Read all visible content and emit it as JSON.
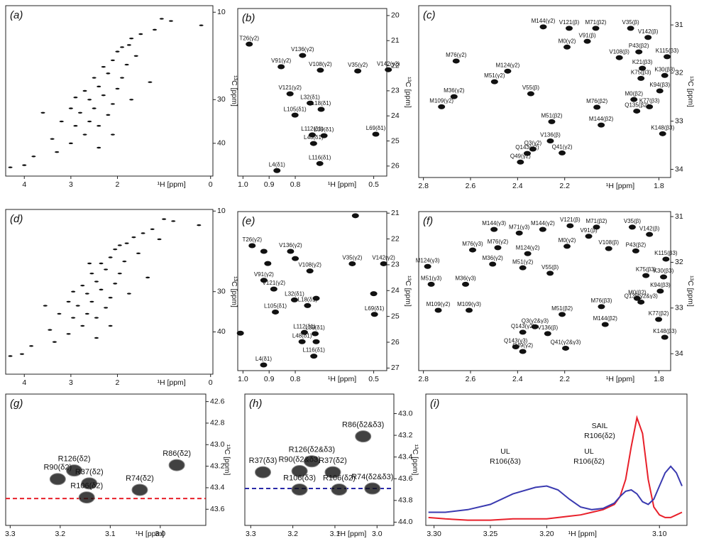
{
  "chart_data": [
    {
      "type": "scatter",
      "panel_label": "(a)",
      "xlabel": "¹H [ppm]",
      "ylabel": "¹³C [ppm]",
      "x_reversed": true,
      "y_reversed": true,
      "xlim": [
        -0.05,
        4.4
      ],
      "ylim": [
        8.5,
        47.5
      ],
      "xticks": [
        4,
        3,
        2,
        0
      ],
      "yticks": [
        10,
        30,
        40
      ],
      "peak_color": "#111111",
      "x": [
        1.05,
        1.2,
        1.5,
        1.7,
        1.75,
        1.9,
        2.0,
        1.6,
        2.1,
        1.8,
        2.3,
        2.2,
        1.9,
        2.5,
        2.4,
        2.0,
        2.7,
        2.3,
        2.6,
        2.9,
        1.7,
        2.1,
        2.5,
        2.8,
        3.0,
        2.2,
        2.6,
        2.4,
        2.9,
        3.2,
        2.1,
        2.7,
        3.0,
        3.4,
        3.3,
        2.4,
        3.8,
        4.3,
        4.0,
        0.85,
        0.2,
        3.6,
        1.3
      ],
      "y": [
        11.5,
        14,
        15,
        16,
        17.5,
        18,
        19,
        20,
        21,
        22,
        22.5,
        24,
        25,
        25,
        27,
        27.5,
        28,
        29,
        30,
        29.5,
        30,
        31,
        32,
        33,
        32,
        33.5,
        35,
        36,
        36,
        35,
        38,
        38,
        40,
        39,
        42,
        41,
        43,
        45.5,
        45,
        12,
        13,
        33,
        26
      ]
    },
    {
      "type": "scatter",
      "panel_label": "(b)",
      "xlabel": "¹H [ppm]",
      "ylabel": "¹³C [ppm]",
      "x_reversed": true,
      "y_reversed": true,
      "xlim": [
        0.45,
        1.02
      ],
      "ylim": [
        19.72,
        26.4
      ],
      "xticks": [
        {
          "value": 1,
          "label": "1.0"
        },
        0.9,
        0.8,
        0.5
      ],
      "yticks": [
        20,
        21,
        22,
        23,
        24,
        25,
        26
      ],
      "peak_color": "#111111",
      "label_color": "#e8202a",
      "x": [
        0.976,
        0.772,
        0.854,
        0.704,
        0.561,
        0.444,
        0.82,
        0.743,
        0.801,
        0.701,
        0.735,
        0.69,
        0.73,
        0.492,
        0.706,
        0.87
      ],
      "y": [
        21.14,
        21.59,
        22.04,
        22.18,
        22.21,
        22.16,
        23.12,
        23.49,
        23.97,
        23.74,
        24.76,
        24.79,
        25.1,
        24.73,
        25.9,
        26.18
      ],
      "labels": [
        "T26(γ2)",
        "V136(γ2)",
        "V91(γ2)",
        "V108(γ2)",
        "V35(γ2)",
        "V142(γ2)",
        "V121(γ2)",
        "L32(δ1)",
        "L105(δ1)",
        "L18(δ1)",
        "L112(δ1)",
        "L39(δ1)",
        "L48(δ1)",
        "L69(δ1)",
        "L116(δ1)",
        "L4(δ1)"
      ]
    },
    {
      "type": "scatter",
      "panel_label": "(c)",
      "xlabel": "¹H [ppm]",
      "ylabel": "¹³C [ppm]",
      "x_reversed": true,
      "y_reversed": true,
      "xlim": [
        1.75,
        2.82
      ],
      "ylim": [
        30.6,
        34.17
      ],
      "xticks": [
        2.8,
        2.6,
        2.4,
        2.2,
        1.8
      ],
      "yticks": [
        31,
        32,
        33,
        34
      ],
      "peak_color": "#111111",
      "label_color": "#e8202a",
      "x": [
        2.181,
        2.068,
        1.92,
        1.846,
        2.291,
        2.104,
        1.885,
        1.968,
        1.765,
        1.87,
        1.876,
        1.775,
        2.19,
        2.661,
        2.442,
        2.67,
        2.498,
        2.344,
        1.906,
        1.796,
        2.723,
        2.063,
        1.84,
        1.894,
        2.255,
        2.045,
        2.335,
        2.359,
        2.261,
        1.784,
        2.211,
        2.388
      ],
      "y": [
        31.07,
        31.07,
        31.07,
        31.26,
        31.04,
        31.34,
        31.56,
        31.68,
        31.66,
        31.9,
        32.11,
        32.05,
        31.46,
        31.75,
        31.96,
        32.49,
        32.18,
        32.43,
        32.55,
        32.37,
        32.7,
        32.71,
        32.7,
        32.79,
        33.01,
        33.08,
        33.58,
        33.67,
        33.41,
        33.26,
        33.66,
        33.85
      ],
      "labels": [
        "V121(β)",
        "M71(β2)",
        "V35(β)",
        "V142(β)",
        "M144(γ2)",
        "V91(β)",
        "P43(β2)",
        "V108(β)",
        "K115(β3)",
        "K21(β3)",
        "K75(β3)",
        "K30(β3)",
        "M0(γ2)",
        "M76(γ2)",
        "M124(γ2)",
        "M36(γ2)",
        "M51(γ2)",
        "V55(β)",
        "M0(β2)",
        "K94(β3)",
        "M109(γ2)",
        "M76(β2)",
        "K77(β3)",
        "Q135(β2)",
        "M51(β2)",
        "M144(β2)",
        "Q3(γ2)",
        "Q143(γ2)",
        "V136(β)",
        "K148(β3)",
        "Q41(γ2)",
        "Q49(γ2)"
      ]
    },
    {
      "type": "scatter",
      "panel_label": "(d)",
      "xlabel": "¹H [ppm]",
      "ylabel": "¹³C [ppm]",
      "x_reversed": true,
      "y_reversed": true,
      "xlim": [
        -0.05,
        4.4
      ],
      "ylim": [
        9.6,
        50.5
      ],
      "xticks": [
        4,
        3,
        2,
        0
      ],
      "yticks": [
        10,
        30,
        40
      ],
      "peak_color": "#111111",
      "x": [
        1.0,
        1.25,
        1.45,
        1.65,
        1.8,
        1.95,
        2.05,
        1.55,
        2.15,
        1.85,
        2.35,
        2.25,
        1.95,
        2.55,
        2.45,
        2.05,
        2.75,
        2.35,
        2.65,
        2.95,
        1.75,
        2.15,
        2.55,
        2.85,
        3.05,
        2.25,
        2.65,
        2.45,
        2.95,
        3.25,
        2.15,
        2.75,
        3.05,
        3.45,
        3.35,
        2.45,
        3.85,
        4.3,
        4.05,
        0.8,
        0.25,
        3.55,
        1.35,
        1.1,
        2.6
      ],
      "y": [
        12,
        14.5,
        15.5,
        16.5,
        18,
        18.5,
        19.5,
        20.5,
        21.5,
        22.5,
        23,
        24.5,
        25.5,
        25.5,
        27.5,
        28,
        28.5,
        29.5,
        30.5,
        30,
        30.5,
        31.5,
        32.5,
        33.5,
        32.5,
        34,
        35.5,
        36.5,
        36.5,
        35.5,
        38.5,
        38.5,
        40.5,
        39.5,
        42.5,
        41.5,
        43.5,
        46,
        45.5,
        12.5,
        13.5,
        33.5,
        26.5,
        17,
        23
      ]
    },
    {
      "type": "scatter",
      "panel_label": "(e)",
      "xlabel": "¹H [ppm]",
      "ylabel": "¹³C [ppm]",
      "x_reversed": true,
      "y_reversed": true,
      "xlim": [
        0.45,
        1.02
      ],
      "ylim": [
        20.94,
        27.1
      ],
      "xticks": [
        {
          "value": 1,
          "label": "1.0"
        },
        0.9,
        0.8,
        0.5
      ],
      "yticks": [
        21,
        22,
        23,
        24,
        25,
        26,
        27
      ],
      "peak_color": "#111111",
      "label_color": "#e8202a",
      "x": [
        0.965,
        0.818,
        0.92,
        0.744,
        0.582,
        0.462,
        0.882,
        0.803,
        0.876,
        0.753,
        0.497,
        0.765,
        0.724,
        0.774,
        0.729,
        0.921,
        0.57,
        0.92,
        0.905,
        0.8,
        0.5,
        1.01,
        0.72,
        0.72
      ],
      "y": [
        22.26,
        22.48,
        23.6,
        23.24,
        22.96,
        22.96,
        23.94,
        24.36,
        24.83,
        24.58,
        24.92,
        25.62,
        25.67,
        25.98,
        26.54,
        26.88,
        21.1,
        22.48,
        22.95,
        22.76,
        24.12,
        25.65,
        25.98,
        24.3
      ],
      "labels": [
        "T26(γ2)",
        "V136(γ2)",
        "V91(γ2)",
        "V108(γ2)",
        "V35(γ2)",
        "V142(γ2)",
        "V121(γ2)",
        "L32(δ1)",
        "L105(δ1)",
        "L18(δ1)",
        "L69(δ1)",
        "L112(δ1)",
        "L39(δ1)",
        "L48(δ1)",
        "L116(δ1)",
        "L4(δ1)",
        null,
        null,
        null,
        null,
        null,
        null,
        null,
        null
      ]
    },
    {
      "type": "scatter",
      "panel_label": "(f)",
      "xlabel": "¹H [ppm]",
      "ylabel": "¹³C [ppm]",
      "x_reversed": true,
      "y_reversed": true,
      "xlim": [
        1.75,
        2.82
      ],
      "ylim": [
        30.89,
        34.37
      ],
      "xticks": [
        2.8,
        2.6,
        2.4,
        2.2,
        1.8
      ],
      "yticks": [
        31,
        32,
        33,
        34
      ],
      "peak_color": "#111111",
      "x": [
        2.177,
        2.065,
        1.913,
        1.84,
        2.293,
        2.098,
        1.898,
        2.013,
        1.77,
        2.484,
        2.19,
        2.357,
        2.506,
        2.378,
        2.262,
        1.855,
        1.78,
        1.892,
        1.794,
        1.876,
        2.737,
        2.211,
        2.028,
        2.326,
        2.378,
        2.272,
        1.775,
        2.196,
        2.378,
        2.393,
        2.5,
        2.591,
        2.782,
        2.767,
        2.621,
        2.606,
        2.044,
        2.408,
        1.801
      ],
      "y": [
        31.2,
        31.23,
        31.23,
        31.39,
        31.28,
        31.43,
        31.75,
        31.7,
        31.93,
        31.68,
        31.65,
        31.81,
        32.04,
        32.12,
        32.24,
        32.29,
        32.32,
        32.79,
        32.63,
        32.87,
        33.05,
        33.14,
        33.36,
        33.41,
        33.53,
        33.56,
        33.64,
        33.88,
        33.95,
        31.36,
        31.28,
        31.73,
        32.09,
        32.48,
        32.48,
        33.05,
        32.97,
        33.85,
        33.25
      ],
      "labels": [
        "V121(β)",
        "M71(β2)",
        "V35(β)",
        "V142(β)",
        "M144(γ2)",
        "V91(β)",
        "P43(β2)",
        "V108(β)",
        "K115(β3)",
        "M76(γ2)",
        "M0(γ2)",
        "M124(γ2)",
        "M36(γ2)",
        "M51(γ2)",
        "V55(β)",
        "K75(β3)",
        "K30(β3)",
        "M0(β2)",
        "K94(β3)",
        "Q135(γ2&γ3)",
        "M109(γ2)",
        "M51(β2)",
        "M144(β2)",
        "Q3(γ2&γ3)",
        "Q143(γ2)",
        "V136(β)",
        "K148(β3)",
        "Q41(γ2&γ3)",
        "Q49(γ2)",
        "M71(γ3)",
        "M144(γ3)",
        "M76(γ3)",
        "M124(γ3)",
        "M51(γ3)",
        "M36(γ3)",
        "M109(γ3)",
        "M76(β3)",
        "Q143(γ3)",
        "K77(β2)"
      ],
      "label_colors": [
        "#e8202a",
        "#e8202a",
        "#e8202a",
        "#e8202a",
        "#e8202a",
        "#e8202a",
        "#e8202a",
        "#e8202a",
        "#e8202a",
        "#e8202a",
        "#e8202a",
        "#e8202a",
        "#e8202a",
        "#e8202a",
        "#e8202a",
        "#e8202a",
        "#e8202a",
        "#e8202a",
        "#e8202a",
        "#e8202a",
        "#e8202a",
        "#e8202a",
        "#e8202a",
        "#e8202a",
        "#e8202a",
        "#e8202a",
        "#e8202a",
        "#e8202a",
        "#e8202a",
        "#222222",
        "#222222",
        "#222222",
        "#222222",
        "#222222",
        "#222222",
        "#222222",
        "#222222",
        "#222222",
        "#222222"
      ]
    },
    {
      "type": "scatter",
      "panel_label": "(g)",
      "xlabel": "¹H [ppm]",
      "ylabel": "¹³C [ppm]",
      "x_reversed": true,
      "y_reversed": true,
      "xlim": [
        2.909,
        3.309
      ],
      "ylim": [
        42.53,
        43.75
      ],
      "xticks": [
        3.3,
        3.2,
        3.1,
        {
          "value": 3,
          "label": "3.0"
        }
      ],
      "yticks": [
        42.6,
        42.8,
        {
          "value": 43,
          "label": "43.0"
        },
        43.2,
        43.4,
        43.6
      ],
      "peak_color": "#111111",
      "label_color": "#e8202a",
      "big_peaks": true,
      "hline": 43.5,
      "hline_color": "#e8202a",
      "x": [
        3.205,
        3.172,
        3.142,
        3.147,
        3.041,
        2.967
      ],
      "y": [
        43.32,
        43.24,
        43.36,
        43.49,
        43.42,
        43.19
      ],
      "labels": [
        "R90(δ2)",
        "R126(δ2)",
        "R37(δ2)",
        "R106(δ2)",
        "R74(δ2)",
        "R86(δ2)"
      ]
    },
    {
      "type": "scatter",
      "panel_label": "(h)",
      "xlabel": "¹H [ppm]",
      "ylabel": "¹³C [ppm]",
      "x_reversed": true,
      "y_reversed": true,
      "xlim": [
        2.96,
        3.314
      ],
      "ylim": [
        42.82,
        44.03
      ],
      "xticks": [
        3.3,
        3.2,
        3.1,
        {
          "value": 3,
          "label": "3.0"
        }
      ],
      "yticks": [
        {
          "value": 43,
          "label": "43.0"
        },
        43.2,
        43.4,
        43.6,
        43.8,
        {
          "value": 44,
          "label": "44.0"
        }
      ],
      "peak_color": "#111111",
      "big_peaks": true,
      "hline": 43.69,
      "hline_color": "#2a2aa8",
      "x": [
        3.033,
        3.155,
        3.184,
        3.271,
        3.105,
        3.011,
        3.184,
        3.09
      ],
      "y": [
        43.21,
        43.44,
        43.53,
        43.54,
        43.54,
        43.69,
        43.7,
        43.7
      ],
      "labels": [
        "R86(δ2&δ3)",
        "R126(δ2&δ3)",
        "R90(δ2&δ3)",
        "R37(δ3)",
        "R37(δ2)",
        "R74(δ2&δ3)",
        "R106(δ3)",
        "R106(δ2)"
      ],
      "label_colors": [
        "#e8202a",
        "#e8202a",
        "#e8202a",
        "#222222",
        "#e8202a",
        "#e8202a",
        "#222222",
        "#e8202a"
      ]
    },
    {
      "type": "line",
      "panel_label": "(i)",
      "xlabel": "¹H [ppm]",
      "x_reversed": true,
      "xlim": [
        3.0756,
        3.3073
      ],
      "ylim": [
        0,
        1
      ],
      "xticks": [
        {
          "value": 3.3,
          "label": "3.30"
        },
        3.25,
        {
          "value": 3.2,
          "label": "3.20"
        },
        {
          "value": 3.1,
          "label": "3.10"
        }
      ],
      "x": [
        3.305,
        3.29,
        3.27,
        3.25,
        3.23,
        3.21,
        3.2,
        3.19,
        3.18,
        3.17,
        3.16,
        3.15,
        3.14,
        3.135,
        3.13,
        3.125,
        3.12,
        3.115,
        3.11,
        3.105,
        3.1,
        3.095,
        3.09,
        3.085,
        3.08
      ],
      "series": [
        {
          "color": "#e8202a",
          "values": [
            0.06,
            0.05,
            0.04,
            0.04,
            0.05,
            0.05,
            0.05,
            0.06,
            0.07,
            0.08,
            0.1,
            0.12,
            0.16,
            0.22,
            0.35,
            0.6,
            0.82,
            0.7,
            0.35,
            0.14,
            0.08,
            0.06,
            0.06,
            0.08,
            0.1
          ]
        },
        {
          "color": "#3a3ab0",
          "values": [
            0.1,
            0.1,
            0.12,
            0.16,
            0.24,
            0.29,
            0.3,
            0.27,
            0.2,
            0.14,
            0.12,
            0.13,
            0.17,
            0.22,
            0.26,
            0.27,
            0.24,
            0.18,
            0.16,
            0.2,
            0.3,
            0.4,
            0.45,
            0.4,
            0.3
          ]
        }
      ],
      "annotations": [
        {
          "lines": [
            "SAIL",
            "R106(δ2)"
          ],
          "color": "#e8202a"
        },
        {
          "lines": [
            "UL",
            "R106(δ3)"
          ],
          "color": "#3a3ab0"
        },
        {
          "lines": [
            "UL",
            "R106(δ2)"
          ],
          "color": "#3a3ab0"
        }
      ]
    }
  ]
}
